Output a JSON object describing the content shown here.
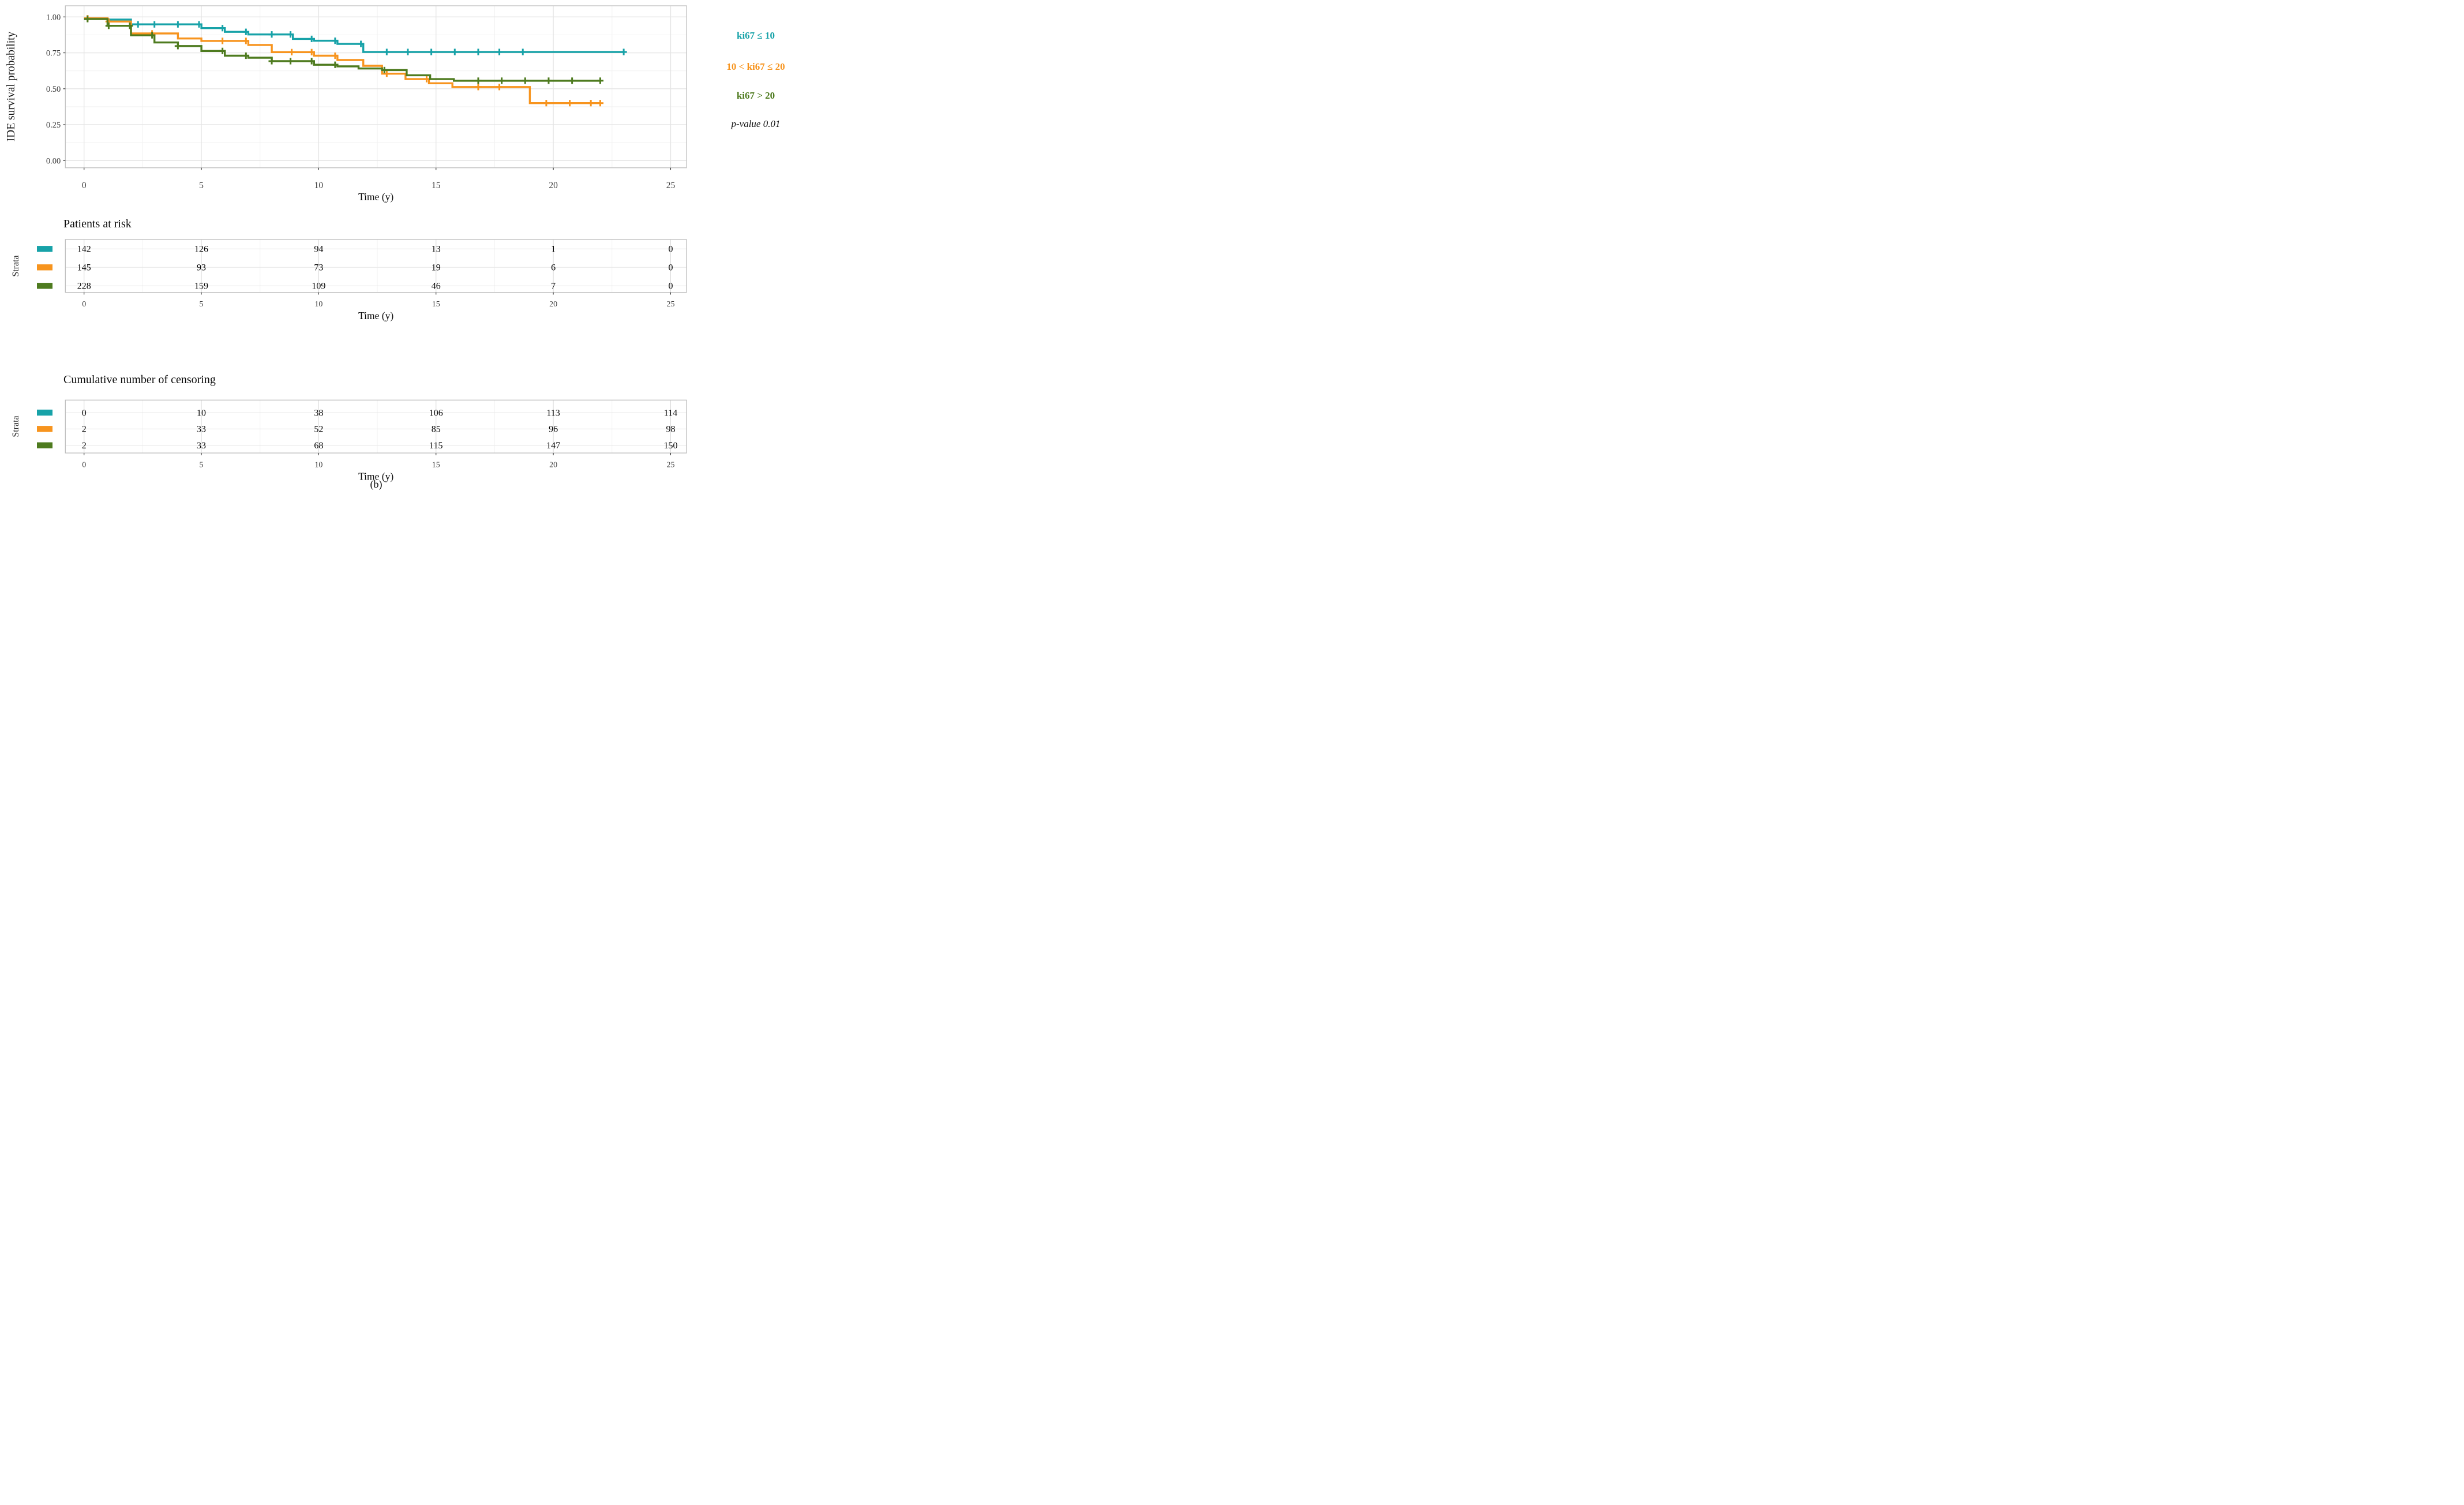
{
  "meta": {
    "caption": "(b)"
  },
  "labels": {
    "y_axis": "IDE survival probability",
    "strata": "Strata",
    "time": "Time (y)",
    "risk_title": "Patients at risk",
    "censor_title": "Cumulative number of censoring"
  },
  "legend": {
    "items": [
      {
        "label": "ki67 ≤ 10",
        "color": "#17A2A8"
      },
      {
        "label": "10 < ki67 ≤ 20",
        "color": "#F7941E"
      },
      {
        "label": "ki67 > 20",
        "color": "#4E7B1F"
      }
    ],
    "p_value": "p-value 0.01"
  },
  "chart_data": [
    {
      "type": "line",
      "subtype": "kaplan-meier-step",
      "title": "",
      "xlabel": "Time (y)",
      "ylabel": "IDE survival probability",
      "xlim": [
        -0.8,
        25.7
      ],
      "ylim": [
        -0.05,
        1.078
      ],
      "x_ticks": [
        0,
        5,
        10,
        15,
        20,
        25
      ],
      "x_minor_ticks": [
        2.5,
        7.5,
        12.5,
        17.5,
        22.5
      ],
      "y_ticks": [
        0,
        0.25,
        0.5,
        0.75,
        1
      ],
      "y_minor_ticks": [
        0.125,
        0.375,
        0.625,
        0.875
      ],
      "grid": true,
      "legend_position": "right",
      "p_value_label": "p-value 0.01",
      "series": [
        {
          "name": "ki67 ≤ 10",
          "color": "#17A2A8",
          "steps": [
            [
              0,
              0.99
            ],
            [
              1,
              0.981
            ],
            [
              2,
              0.948
            ],
            [
              5,
              0.922
            ],
            [
              6,
              0.896
            ],
            [
              7,
              0.878
            ],
            [
              8.9,
              0.847
            ],
            [
              9.8,
              0.834
            ],
            [
              10.8,
              0.812
            ],
            [
              11.9,
              0.756
            ]
          ],
          "end_time": 23,
          "censor_times": [
            0.15,
            2.3,
            3.0,
            4.0,
            4.9,
            5.9,
            6.9,
            8.0,
            8.8,
            9.7,
            10.7,
            11.8,
            12.9,
            13.8,
            14.8,
            15.8,
            16.8,
            17.7,
            18.7,
            23
          ]
        },
        {
          "name": "10 < ki67 ≤ 20",
          "color": "#F7941E",
          "steps": [
            [
              0,
              0.99
            ],
            [
              1,
              0.968
            ],
            [
              2,
              0.885
            ],
            [
              4,
              0.85
            ],
            [
              5,
              0.833
            ],
            [
              7,
              0.805
            ],
            [
              8,
              0.755
            ],
            [
              9.8,
              0.73
            ],
            [
              10.8,
              0.7
            ],
            [
              11.9,
              0.66
            ],
            [
              12.7,
              0.605
            ],
            [
              13.7,
              0.567
            ],
            [
              14.7,
              0.538
            ],
            [
              15.7,
              0.512
            ],
            [
              19,
              0.4
            ]
          ],
          "end_time": 22,
          "censor_times": [
            0.15,
            1.05,
            2.9,
            5.9,
            6.9,
            8.85,
            9.7,
            10.7,
            12.9,
            14.6,
            16.8,
            17.7,
            19.7,
            20.7,
            21.6,
            22
          ]
        },
        {
          "name": "ki67 > 20",
          "color": "#4E7B1F",
          "steps": [
            [
              0,
              0.985
            ],
            [
              1,
              0.938
            ],
            [
              2,
              0.872
            ],
            [
              3,
              0.822
            ],
            [
              4,
              0.797
            ],
            [
              5,
              0.763
            ],
            [
              6,
              0.73
            ],
            [
              7,
              0.716
            ],
            [
              8,
              0.692
            ],
            [
              9.8,
              0.667
            ],
            [
              10.8,
              0.656
            ],
            [
              11.7,
              0.641
            ],
            [
              12.7,
              0.63
            ],
            [
              13.75,
              0.594
            ],
            [
              14.75,
              0.567
            ],
            [
              15.76,
              0.556
            ]
          ],
          "end_time": 22,
          "censor_times": [
            0.15,
            1.05,
            1.95,
            2.9,
            4.0,
            5.9,
            6.9,
            8.0,
            8.8,
            9.7,
            10.7,
            12.8,
            16.8,
            17.8,
            18.8,
            19.8,
            20.8,
            22
          ]
        }
      ]
    },
    {
      "type": "table",
      "title": "Patients at risk",
      "xlabel": "Time (y)",
      "ylabel": "Strata",
      "categories": [
        0,
        5,
        10,
        15,
        20,
        25
      ],
      "series": [
        {
          "name": "ki67 ≤ 10",
          "color": "#17A2A8",
          "values": [
            142,
            126,
            94,
            13,
            1,
            0
          ]
        },
        {
          "name": "10 < ki67 ≤ 20",
          "color": "#F7941E",
          "values": [
            145,
            93,
            73,
            19,
            6,
            0
          ]
        },
        {
          "name": "ki67 > 20",
          "color": "#4E7B1F",
          "values": [
            228,
            159,
            109,
            46,
            7,
            0
          ]
        }
      ]
    },
    {
      "type": "table",
      "title": "Cumulative number of censoring",
      "xlabel": "Time (y)",
      "ylabel": "Strata",
      "categories": [
        0,
        5,
        10,
        15,
        20,
        25
      ],
      "series": [
        {
          "name": "ki67 ≤ 10",
          "color": "#17A2A8",
          "values": [
            0,
            10,
            38,
            106,
            113,
            114
          ]
        },
        {
          "name": "10 < ki67 ≤ 20",
          "color": "#F7941E",
          "values": [
            2,
            33,
            52,
            85,
            96,
            98
          ]
        },
        {
          "name": "ki67 > 20",
          "color": "#4E7B1F",
          "values": [
            2,
            33,
            68,
            115,
            147,
            150
          ]
        }
      ]
    }
  ]
}
